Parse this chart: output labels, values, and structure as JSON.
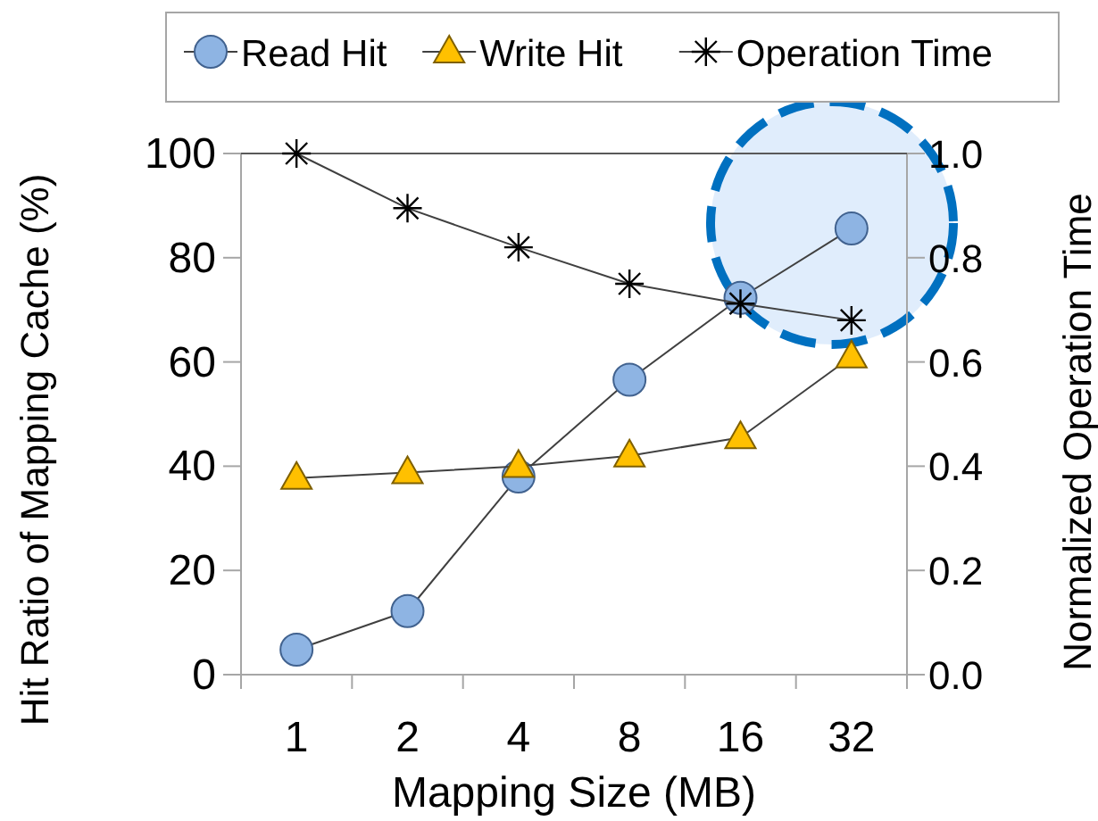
{
  "chart_data": {
    "type": "line",
    "xlabel": "Mapping Size (MB)",
    "ylabel": "Hit Ratio of Mapping Cache (%)",
    "y2label": "Normalized Operation Time",
    "categories": [
      "1",
      "2",
      "4",
      "8",
      "16",
      "32"
    ],
    "series": [
      {
        "name": "Read Hit",
        "color": "#8eb4e3",
        "marker": "circle",
        "values": [
          4.8,
          12.2,
          38,
          56.6,
          72.3,
          85.6
        ]
      },
      {
        "name": "Write Hit",
        "color": "#ffc000",
        "marker": "triangle",
        "values": [
          37.7,
          38.8,
          40,
          42,
          45.5,
          61
        ]
      },
      {
        "name": "Operation Time",
        "color": "#000000",
        "marker": "cross",
        "axis": "y2",
        "values": [
          1.0,
          0.895,
          0.82,
          0.75,
          0.712,
          0.68
        ]
      }
    ],
    "ylim": [
      0,
      100
    ],
    "yticks": [
      0,
      20,
      40,
      60,
      80,
      100
    ],
    "y2lim": [
      0,
      1
    ],
    "y2ticks": [
      {
        "value": 0,
        "label": "0.0"
      },
      {
        "value": 0.2,
        "label": "0.2"
      },
      {
        "value": 0.4,
        "label": "0.4"
      },
      {
        "value": 0.6,
        "label": "0.6"
      },
      {
        "value": 0.8,
        "label": "0.8"
      },
      {
        "value": 1,
        "label": "1.0"
      }
    ],
    "grid": false,
    "legend": "top"
  }
}
